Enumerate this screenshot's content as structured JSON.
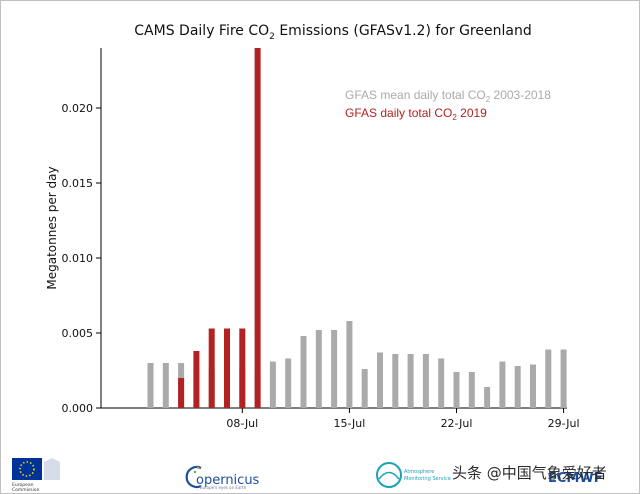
{
  "chart_data": {
    "type": "bar",
    "title": "CAMS Daily Fire CO₂ Emissions (GFASv1.2) for Greenland",
    "title_parts": [
      "CAMS Daily Fire CO",
      "2",
      " Emissions (GFASv1.2) for Greenland"
    ],
    "ylabel": "Megatonnes per day",
    "xlabel": "",
    "ylim": [
      0,
      0.024
    ],
    "y_ticks": [
      0.0,
      0.005,
      0.01,
      0.015,
      0.02
    ],
    "y_tick_labels": [
      "0.000",
      "0.005",
      "0.010",
      "0.015",
      "0.020"
    ],
    "x_tick_labels": [
      "08-Jul",
      "15-Jul",
      "22-Jul",
      "29-Jul"
    ],
    "x_tick_days": [
      8,
      15,
      22,
      29
    ],
    "legend_position": "top-right",
    "series": [
      {
        "name": "GFAS mean daily total CO₂ 2003-2018",
        "legend_parts": [
          "GFAS mean daily total CO",
          "2",
          " 2003-2018"
        ],
        "color": "#aaaaaa",
        "days": [
          2,
          3,
          4,
          5,
          6,
          7,
          8,
          9,
          10,
          11,
          12,
          13,
          14,
          15,
          16,
          17,
          18,
          19,
          20,
          21,
          22,
          23,
          24,
          25,
          26,
          27,
          28,
          29,
          30
        ],
        "values": [
          0.003,
          0.003,
          0.003,
          0.0026,
          0.0026,
          0.0027,
          0.0027,
          0.0023,
          0.0031,
          0.0033,
          0.0048,
          0.0052,
          0.0052,
          0.0058,
          0.0026,
          0.0037,
          0.0036,
          0.0036,
          0.0036,
          0.0033,
          0.0024,
          0.0024,
          0.0014,
          0.0031,
          0.0028,
          0.0029,
          0.0039,
          0.0039,
          0.0
        ]
      },
      {
        "name": "GFAS daily total CO₂ 2019",
        "legend_parts": [
          "GFAS daily total CO",
          "2",
          " 2019"
        ],
        "color": "#b22222",
        "days": [
          4,
          5,
          6,
          7,
          8,
          9
        ],
        "values": [
          0.002,
          0.0038,
          0.0053,
          0.0053,
          0.0053,
          0.024
        ]
      }
    ]
  },
  "footer": {
    "eu_label_1": "European",
    "eu_label_2": "Commission",
    "copernicus_name": "opernicus",
    "copernicus_tagline": "Europe's eyes on Earth",
    "cams_line_1": "Atmosphere",
    "cams_line_2": "Monitoring Service",
    "ecmwf_label": "ECMWF",
    "watermark": "头条 @中国气象爱好者"
  },
  "colors": {
    "eu_blue": "#003399",
    "copernicus_blue": "#1c4f9c",
    "cams_teal": "#1ba3b8"
  }
}
